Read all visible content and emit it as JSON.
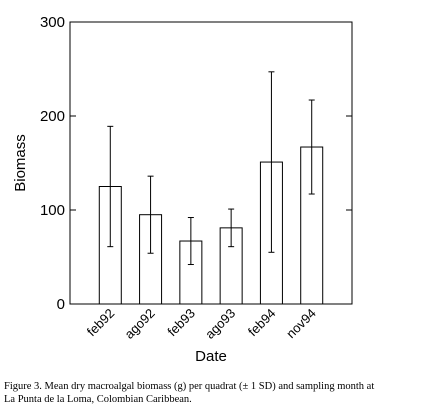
{
  "chart_data": {
    "type": "bar",
    "categories": [
      "feb92",
      "ago92",
      "feb93",
      "ago93",
      "feb94",
      "nov94"
    ],
    "values": [
      125,
      95,
      67,
      81,
      151,
      167
    ],
    "errors": [
      64,
      41,
      25,
      20,
      96,
      50
    ],
    "color": "#ffffff",
    "ylim": [
      0,
      300
    ],
    "yticks": [
      0,
      100,
      200,
      300
    ],
    "xlabel": "Date",
    "ylabel": "Biomass",
    "caption": [
      "Figure 3. Mean dry macroalgal biomass (g) per quadrat (± 1 SD) and sampling month at",
      "La Punta de la Loma, Colombian Caribbean."
    ]
  }
}
